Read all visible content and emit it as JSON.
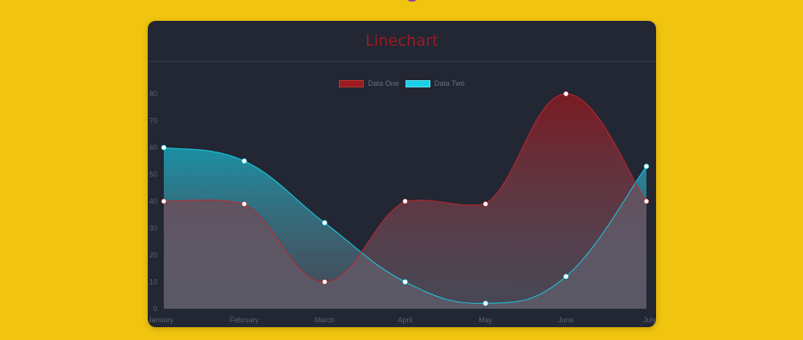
{
  "colors": {
    "page_background": "#f1c40f",
    "card_background": "#222733",
    "title": "#9c1a22",
    "series_one": "#9c1a22",
    "series_two": "#17cfe6"
  },
  "chart_data": {
    "type": "line",
    "title": "Linechart",
    "categories": [
      "January",
      "February",
      "March",
      "April",
      "May",
      "June",
      "July"
    ],
    "series": [
      {
        "name": "Data One",
        "color": "#9c1a22",
        "values": [
          40,
          39,
          10,
          40,
          39,
          80,
          40
        ]
      },
      {
        "name": "Data Two",
        "color": "#17cfe6",
        "values": [
          60,
          55,
          32,
          10,
          2,
          12,
          53
        ]
      }
    ],
    "ylim": [
      0,
      80
    ],
    "yticks": [
      "0",
      "10",
      "20",
      "30",
      "40",
      "50",
      "60",
      "70",
      "80"
    ],
    "xlabel": "",
    "ylabel": "",
    "legend": "top-center",
    "grid": false,
    "fill": true,
    "smooth": true
  }
}
